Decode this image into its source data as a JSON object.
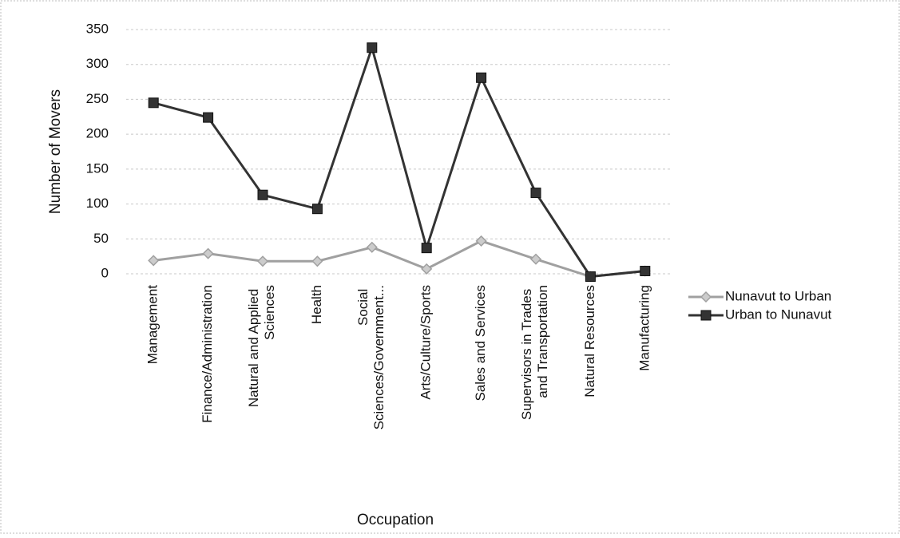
{
  "chart_data": {
    "type": "line",
    "categories": [
      "Management",
      "Finance/Administration",
      "Natural and Applied Sciences",
      "Health",
      "Social Sciences/Government...",
      "Arts/Culture/Sports",
      "Sales and Services",
      "Supervisors in Trades and Transportation",
      "Natural Resources",
      "Manufacturing"
    ],
    "series": [
      {
        "name": "Nunavut to Urban",
        "color": "#a0a0a0",
        "marker": "diamond",
        "values": [
          19,
          29,
          18,
          18,
          38,
          7,
          47,
          21,
          -4,
          4
        ]
      },
      {
        "name": "Urban to Nunavut",
        "color": "#333333",
        "marker": "square",
        "values": [
          245,
          224,
          113,
          93,
          324,
          37,
          281,
          116,
          -4,
          4
        ]
      }
    ],
    "x_label": "Occupation",
    "y_label": "Number of Movers",
    "ylim": [
      0,
      350
    ],
    "yticks": [
      0,
      50,
      100,
      150,
      200,
      250,
      300,
      350
    ],
    "grid": true,
    "legend": "right"
  }
}
